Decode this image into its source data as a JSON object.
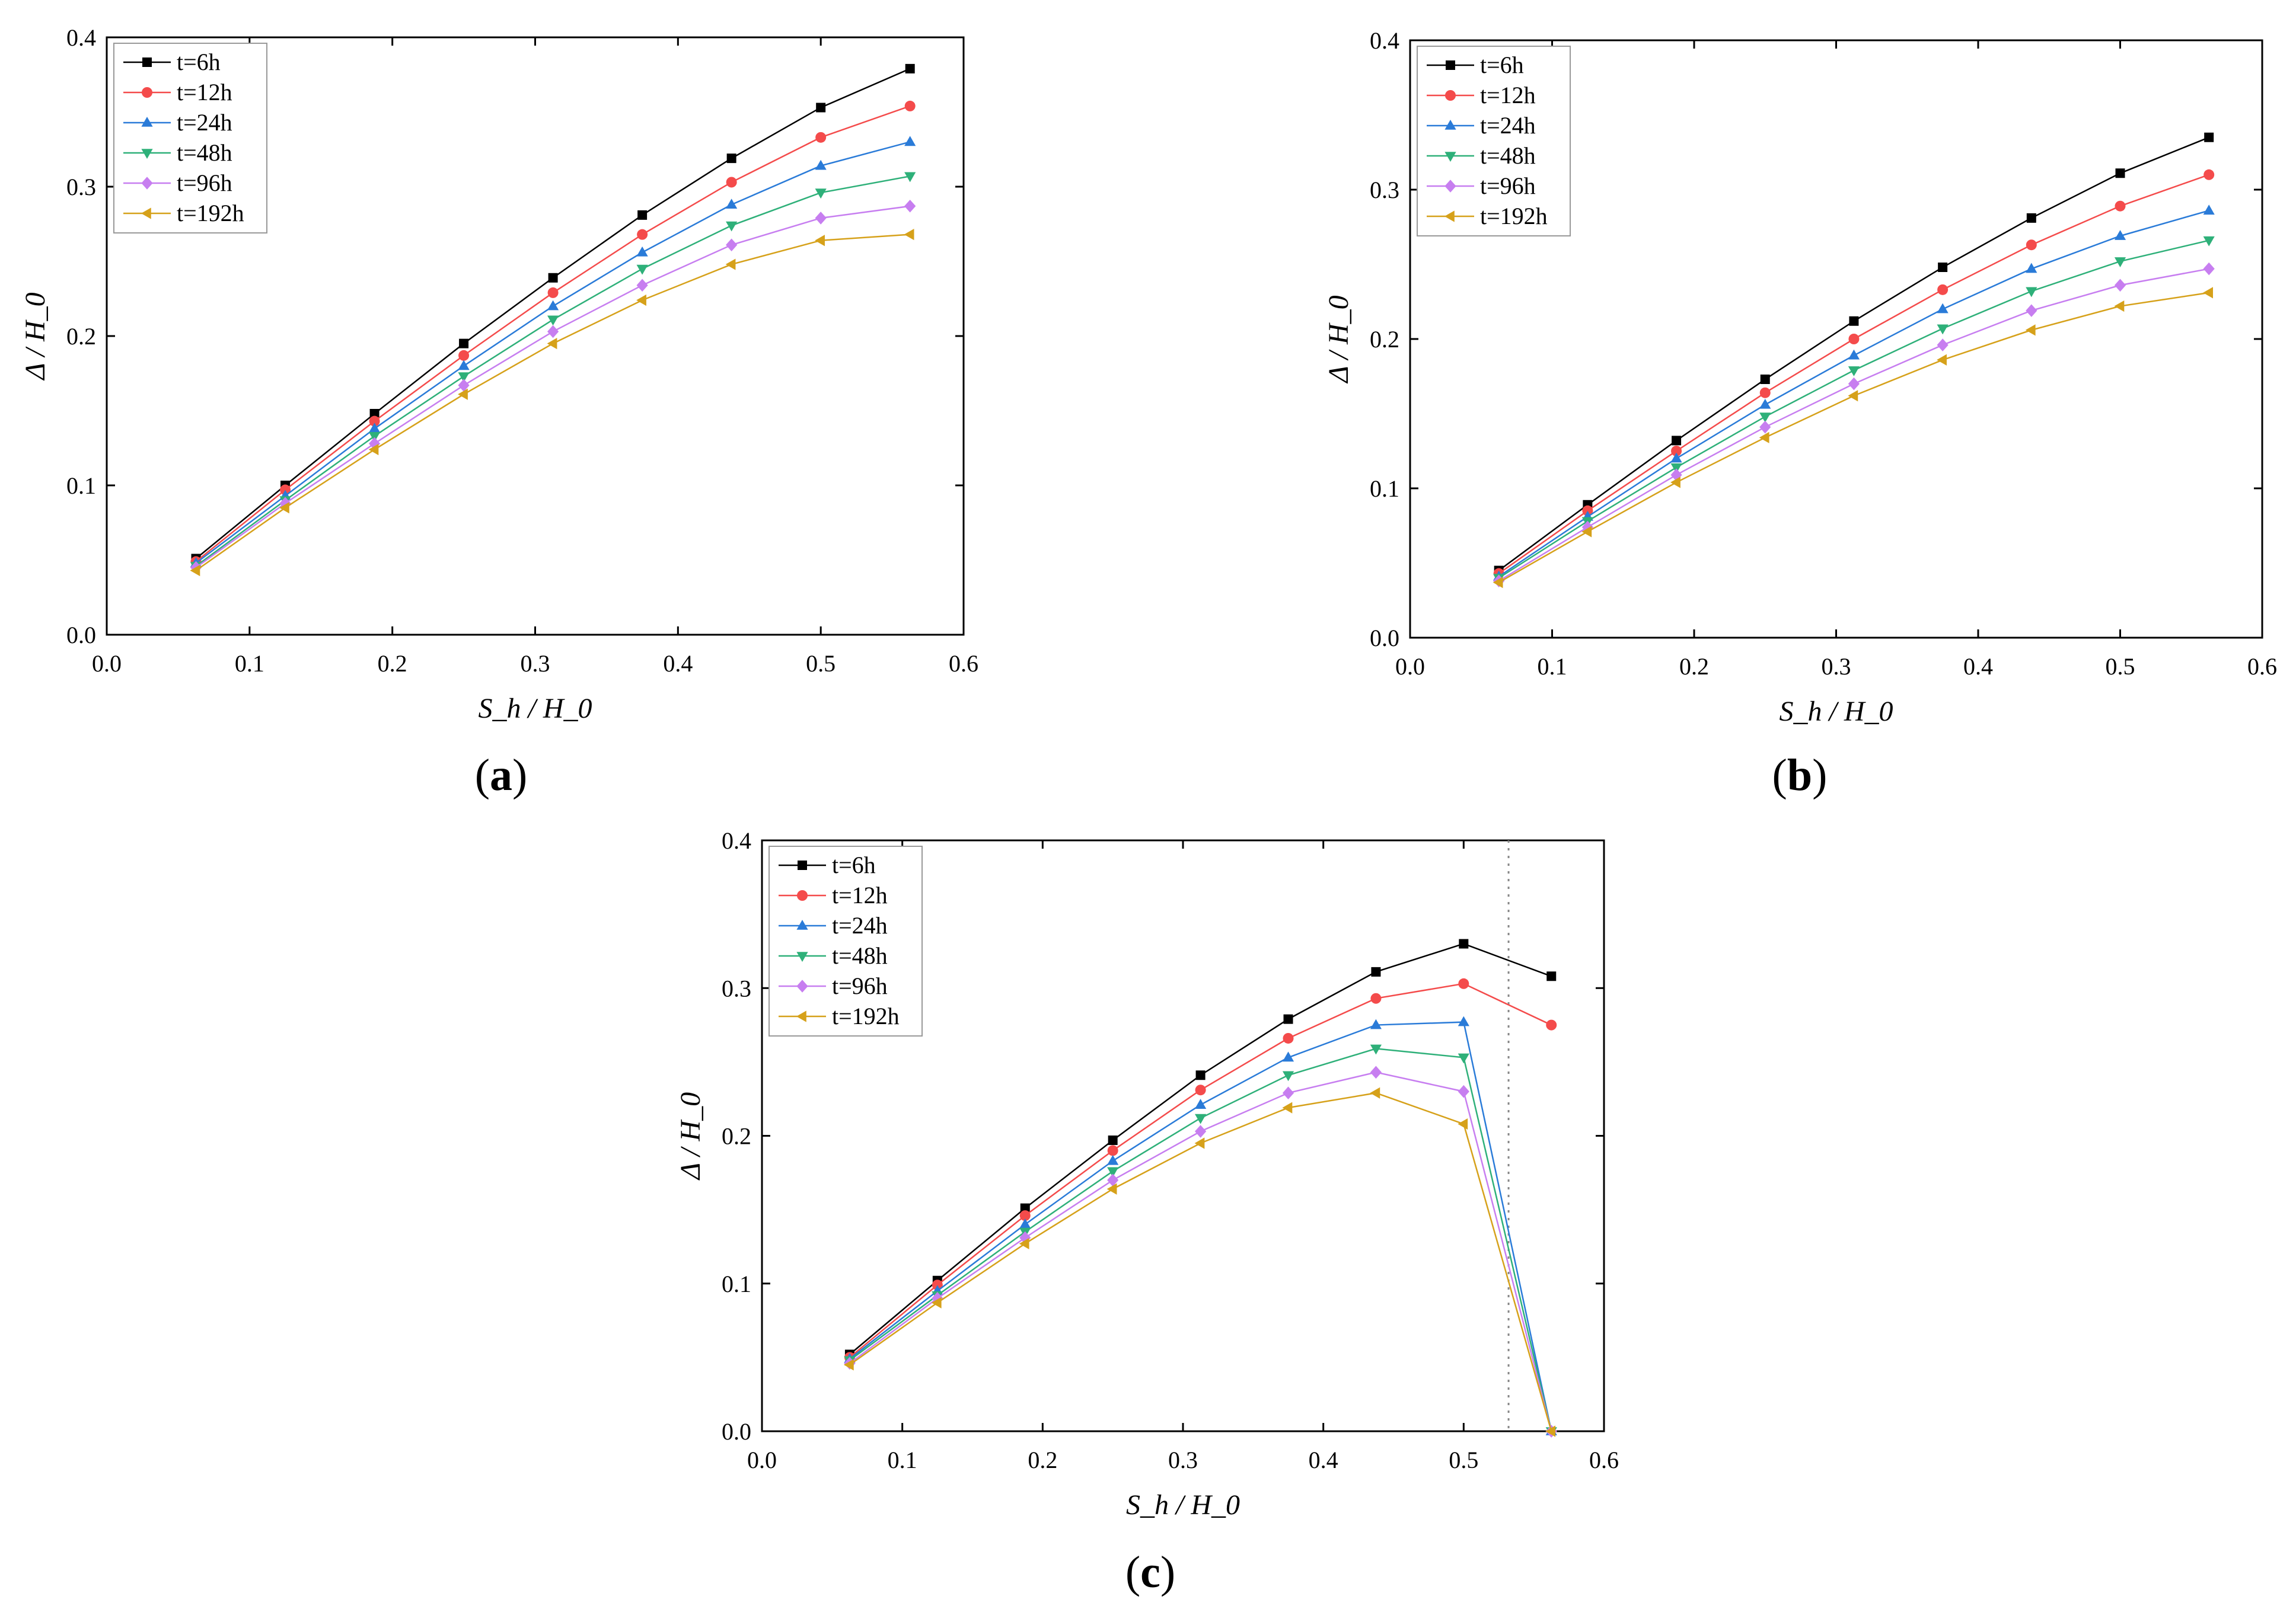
{
  "figure": {
    "captions": [
      "a",
      "b",
      "c"
    ]
  },
  "legend_labels": [
    "t=6h",
    "t=12h",
    "t=24h",
    "t=48h",
    "t=96h",
    "t=192h"
  ],
  "series_style": [
    {
      "color": "#000000",
      "marker": "square"
    },
    {
      "color": "#f44b4b",
      "marker": "circle"
    },
    {
      "color": "#2a7bd8",
      "marker": "triangle-up"
    },
    {
      "color": "#2eb079",
      "marker": "triangle-down"
    },
    {
      "color": "#c77ef0",
      "marker": "diamond"
    },
    {
      "color": "#d6a11a",
      "marker": "triangle-left"
    }
  ],
  "chart_data": [
    {
      "panel": "a",
      "type": "line",
      "xlabel": "S_h / H_0",
      "ylabel": "Δ / H_0",
      "xlim": [
        0.0,
        0.6
      ],
      "ylim": [
        0.0,
        0.4
      ],
      "xticks": [
        "0.0",
        "0.1",
        "0.2",
        "0.3",
        "0.4",
        "0.5",
        "0.6"
      ],
      "yticks": [
        "0.0",
        "0.1",
        "0.2",
        "0.3",
        "0.4"
      ],
      "x": [
        0.0625,
        0.125,
        0.1875,
        0.25,
        0.3125,
        0.375,
        0.4375,
        0.5,
        0.5625
      ],
      "series": [
        {
          "name": "t=6h",
          "values": [
            0.051,
            0.1,
            0.148,
            0.195,
            0.239,
            0.281,
            0.319,
            0.353,
            0.379
          ]
        },
        {
          "name": "t=12h",
          "values": [
            0.049,
            0.097,
            0.143,
            0.187,
            0.229,
            0.268,
            0.303,
            0.333,
            0.354
          ]
        },
        {
          "name": "t=24h",
          "values": [
            0.048,
            0.093,
            0.138,
            0.18,
            0.22,
            0.256,
            0.288,
            0.314,
            0.33
          ]
        },
        {
          "name": "t=48h",
          "values": [
            0.046,
            0.09,
            0.133,
            0.173,
            0.211,
            0.245,
            0.274,
            0.296,
            0.307
          ]
        },
        {
          "name": "t=96h",
          "values": [
            0.045,
            0.088,
            0.128,
            0.167,
            0.203,
            0.234,
            0.261,
            0.279,
            0.287
          ]
        },
        {
          "name": "t=192h",
          "values": [
            0.043,
            0.085,
            0.124,
            0.161,
            0.195,
            0.224,
            0.248,
            0.264,
            0.268
          ]
        }
      ]
    },
    {
      "panel": "b",
      "type": "line",
      "xlabel": "S_h / H_0",
      "ylabel": "Δ / H_0",
      "xlim": [
        0.0,
        0.6
      ],
      "ylim": [
        0.0,
        0.4
      ],
      "xticks": [
        "0.0",
        "0.1",
        "0.2",
        "0.3",
        "0.4",
        "0.5",
        "0.6"
      ],
      "yticks": [
        "0.0",
        "0.1",
        "0.2",
        "0.3",
        "0.4"
      ],
      "x": [
        0.0625,
        0.125,
        0.1875,
        0.25,
        0.3125,
        0.375,
        0.4375,
        0.5,
        0.5625
      ],
      "series": [
        {
          "name": "t=6h",
          "values": [
            0.045,
            0.089,
            0.132,
            0.173,
            0.212,
            0.248,
            0.281,
            0.311,
            0.335
          ]
        },
        {
          "name": "t=12h",
          "values": [
            0.043,
            0.085,
            0.125,
            0.164,
            0.2,
            0.233,
            0.263,
            0.289,
            0.31
          ]
        },
        {
          "name": "t=24h",
          "values": [
            0.041,
            0.081,
            0.12,
            0.156,
            0.189,
            0.22,
            0.247,
            0.269,
            0.286
          ]
        },
        {
          "name": "t=48h",
          "values": [
            0.04,
            0.078,
            0.114,
            0.148,
            0.179,
            0.207,
            0.232,
            0.252,
            0.266
          ]
        },
        {
          "name": "t=96h",
          "values": [
            0.038,
            0.074,
            0.109,
            0.141,
            0.17,
            0.196,
            0.219,
            0.236,
            0.247
          ]
        },
        {
          "name": "t=192h",
          "values": [
            0.037,
            0.071,
            0.104,
            0.134,
            0.162,
            0.186,
            0.206,
            0.222,
            0.231
          ]
        }
      ]
    },
    {
      "panel": "c",
      "type": "line",
      "xlabel": "S_h / H_0",
      "ylabel": "Δ / H_0",
      "xlim": [
        0.0,
        0.6
      ],
      "ylim": [
        0.0,
        0.4
      ],
      "xticks": [
        "0.0",
        "0.1",
        "0.2",
        "0.3",
        "0.4",
        "0.5",
        "0.6"
      ],
      "yticks": [
        "0.0",
        "0.1",
        "0.2",
        "0.3",
        "0.4"
      ],
      "vline_x": 0.532,
      "x": [
        0.0625,
        0.125,
        0.1875,
        0.25,
        0.3125,
        0.375,
        0.4375,
        0.5,
        0.5625
      ],
      "series": [
        {
          "name": "t=6h",
          "values": [
            0.052,
            0.102,
            0.151,
            0.197,
            0.241,
            0.279,
            0.311,
            0.33,
            0.308
          ]
        },
        {
          "name": "t=12h",
          "values": [
            0.05,
            0.099,
            0.146,
            0.19,
            0.231,
            0.266,
            0.293,
            0.303,
            0.275
          ]
        },
        {
          "name": "t=24h",
          "values": [
            0.049,
            0.095,
            0.14,
            0.183,
            0.221,
            0.253,
            0.275,
            0.277,
            0.0
          ]
        },
        {
          "name": "t=48h",
          "values": [
            0.048,
            0.092,
            0.135,
            0.176,
            0.212,
            0.241,
            0.259,
            0.253,
            0.0
          ]
        },
        {
          "name": "t=96h",
          "values": [
            0.046,
            0.09,
            0.131,
            0.17,
            0.203,
            0.229,
            0.243,
            0.23,
            0.0
          ]
        },
        {
          "name": "t=192h",
          "values": [
            0.045,
            0.087,
            0.127,
            0.164,
            0.195,
            0.219,
            0.229,
            0.208,
            0.0
          ]
        }
      ]
    }
  ]
}
